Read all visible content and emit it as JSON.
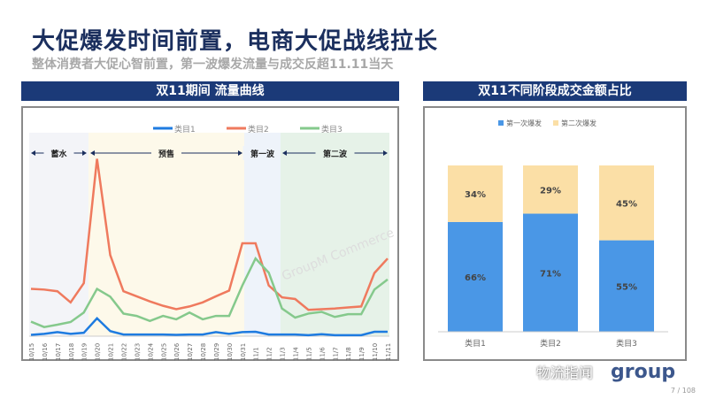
{
  "title": "大促爆发时间前置，电商大促战线拉长",
  "subtitle": "整体消费者大促心智前置，第一波爆发流量与成交反超11.11当天",
  "left_header": "双11期间 流量曲线",
  "right_header": "双11不同阶段成交金额占比",
  "watermark": "GroupM Commerce",
  "wechat_watermark": "物流指闻",
  "logo": "group",
  "page": "7 / 108",
  "chart_data": [
    {
      "type": "line",
      "title": "双11期间 流量曲线",
      "ylim": [
        0,
        110
      ],
      "x": [
        "10/15",
        "10/16",
        "10/17",
        "10/18",
        "10/19",
        "10/20",
        "10/21",
        "10/22",
        "10/23",
        "10/24",
        "10/25",
        "10/26",
        "10/27",
        "10/28",
        "10/29",
        "10/30",
        "10/31",
        "11/1",
        "11/2",
        "11/3",
        "11/4",
        "11/5",
        "11/6",
        "11/7",
        "11/8",
        "11/9",
        "11/10",
        "11/11"
      ],
      "phases": [
        {
          "label": "蓄水",
          "from": "10/15",
          "to": "10/19",
          "color": "#f3f4f8"
        },
        {
          "label": "预售",
          "from": "10/19",
          "to": "10/31",
          "color": "#fdf9ea"
        },
        {
          "label": "第一波",
          "from": "10/31",
          "to": "11/3",
          "color": "#eef3fa"
        },
        {
          "label": "第二波",
          "from": "11/3",
          "to": "11/11",
          "color": "#e6f2e8"
        }
      ],
      "series": [
        {
          "name": "类目1",
          "color": "#1e7be0",
          "values": [
            0.8,
            1.4,
            2.4,
            1.4,
            2,
            10.6,
            3,
            1,
            1,
            1,
            1,
            0.8,
            1,
            1,
            2.4,
            1.4,
            2.4,
            2.6,
            1,
            1,
            1,
            0.6,
            1.2,
            0.6,
            0.6,
            0.6,
            2.6,
            2.6
          ]
        },
        {
          "name": "类目2",
          "color": "#ef7a5e",
          "values": [
            28,
            27.6,
            26.6,
            20,
            31.4,
            105,
            48,
            26.6,
            23.6,
            20.6,
            18,
            16,
            17.6,
            20,
            23.6,
            27,
            55,
            55,
            30,
            23,
            22,
            15.6,
            16,
            16.4,
            17,
            17.6,
            37.4,
            46
          ]
        },
        {
          "name": "类目3",
          "color": "#85c98c",
          "values": [
            8.6,
            5.4,
            6.8,
            8.4,
            14,
            28,
            23.4,
            13.4,
            12,
            9,
            12,
            10,
            14,
            10,
            12,
            12,
            30,
            46,
            37.6,
            16.4,
            11,
            13.4,
            14.4,
            11.4,
            13,
            13,
            27.6,
            33.6
          ]
        }
      ]
    },
    {
      "type": "bar",
      "stacked": true,
      "title": "双11不同阶段成交金额占比",
      "categories": [
        "类目1",
        "类目2",
        "类目3"
      ],
      "ylim": [
        0,
        100
      ],
      "series": [
        {
          "name": "第一次爆发",
          "color": "#4a97e6",
          "values": [
            66,
            71,
            55
          ],
          "labels": [
            "66%",
            "71%",
            "55%"
          ]
        },
        {
          "name": "第二次爆发",
          "color": "#fbdfa6",
          "values": [
            34,
            29,
            45
          ],
          "labels": [
            "34%",
            "29%",
            "45%"
          ]
        }
      ]
    }
  ]
}
